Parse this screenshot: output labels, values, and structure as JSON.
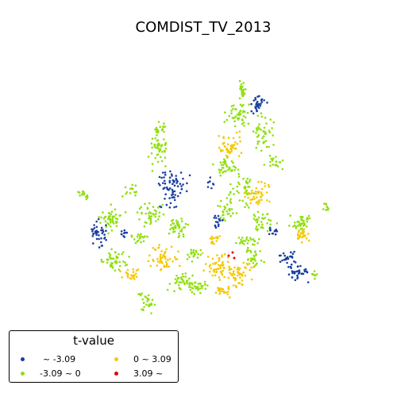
{
  "title": "COMDIST_TV_2013",
  "legend": {
    "title": "t-value",
    "items": [
      {
        "label": "~ -3.09",
        "color": "#1a3fa0"
      },
      {
        "label": "-3.09 ~ 0",
        "color": "#90e010"
      },
      {
        "label": "0 ~ 3.09",
        "color": "#f5c800"
      },
      {
        "label": "3.09 ~",
        "color": "#e60000"
      }
    ]
  },
  "colors": {
    "strong_negative": "#1a3fa0",
    "weak_negative": "#90e010",
    "weak_positive": "#f5c800",
    "strong_positive": "#e60000"
  }
}
